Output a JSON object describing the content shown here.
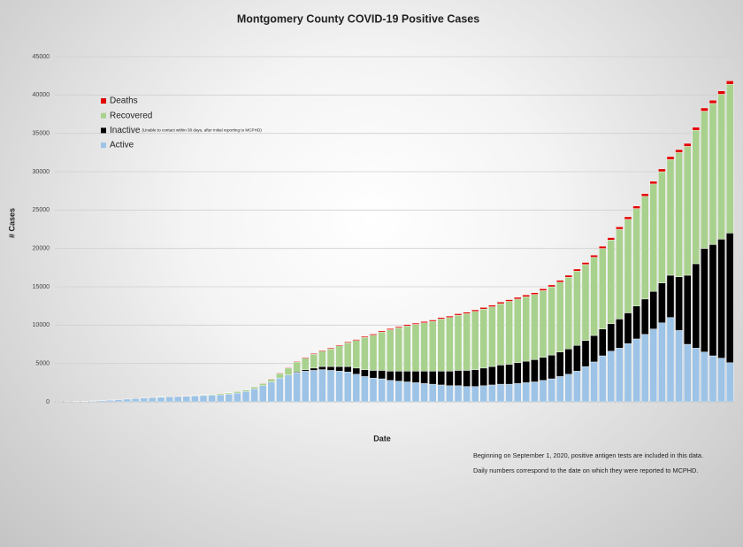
{
  "chart_data": {
    "type": "bar",
    "stacked": true,
    "title": "Montgomery County COVID-19 Positive Cases",
    "x_label": "Date",
    "y_label": "# Cases",
    "legend_note": "(Unable to contact within 30 days, after initial reporting to MCPHD)",
    "annotations": [
      "Beginning on September 1, 2020, positive antigen tests are included in this data.",
      "Daily numbers correspond to the date on which they were reported to MCPHD."
    ],
    "ylim": [
      0,
      45000
    ],
    "yticks": [
      0,
      5000,
      10000,
      15000,
      20000,
      25000,
      30000,
      35000,
      40000,
      45000
    ],
    "grid": true,
    "categories": [
      null,
      null,
      null,
      null,
      null,
      null,
      null,
      null,
      null,
      null,
      null,
      null,
      null,
      null,
      null,
      null,
      null,
      null,
      null,
      null,
      null,
      null,
      null,
      null,
      null,
      null,
      null,
      null,
      null,
      null,
      null,
      null,
      null,
      null,
      null,
      null,
      null,
      null,
      null,
      null,
      null,
      null,
      null,
      null,
      null,
      null,
      null,
      null,
      null,
      null,
      null,
      null,
      null,
      null,
      null,
      null,
      null,
      null,
      null,
      null,
      null,
      null,
      null,
      null,
      null,
      null,
      null,
      null,
      null,
      null,
      null,
      null,
      null,
      null,
      null,
      null,
      null,
      null,
      null,
      null
    ],
    "series": [
      {
        "name": "Active",
        "color": "#9dc3e6",
        "values": [
          10,
          20,
          40,
          70,
          110,
          160,
          220,
          290,
          360,
          430,
          500,
          560,
          620,
          660,
          700,
          740,
          780,
          820,
          870,
          920,
          1000,
          1150,
          1350,
          1700,
          2100,
          2600,
          3100,
          3500,
          3800,
          4000,
          4100,
          4200,
          4100,
          4000,
          3900,
          3600,
          3300,
          3100,
          3000,
          2800,
          2700,
          2600,
          2500,
          2400,
          2300,
          2200,
          2100,
          2100,
          2000,
          2000,
          2100,
          2200,
          2300,
          2300,
          2400,
          2500,
          2600,
          2800,
          3000,
          3300,
          3600,
          4000,
          4600,
          5200,
          6000,
          6600,
          7000,
          7600,
          8200,
          8800,
          9500,
          10300,
          11000,
          9300,
          7500,
          7000,
          6500,
          6000,
          5700,
          5100
        ]
      },
      {
        "name": "Inactive",
        "color": "#000000",
        "values": [
          0,
          0,
          0,
          0,
          0,
          0,
          0,
          0,
          0,
          0,
          0,
          0,
          0,
          0,
          0,
          0,
          0,
          0,
          0,
          0,
          0,
          0,
          0,
          0,
          0,
          0,
          0,
          0,
          100,
          200,
          300,
          400,
          500,
          600,
          700,
          800,
          900,
          1000,
          1100,
          1200,
          1300,
          1400,
          1500,
          1600,
          1700,
          1800,
          1900,
          2000,
          2100,
          2200,
          2300,
          2400,
          2500,
          2600,
          2700,
          2800,
          2900,
          3000,
          3100,
          3200,
          3300,
          3350,
          3400,
          3450,
          3500,
          3600,
          3800,
          4000,
          4300,
          4600,
          4900,
          5200,
          5500,
          7000,
          9000,
          11000,
          13500,
          14500,
          15500,
          16900
        ]
      },
      {
        "name": "Recovered",
        "color": "#a9d18e",
        "values": [
          0,
          0,
          0,
          0,
          0,
          0,
          0,
          0,
          0,
          0,
          0,
          10,
          20,
          30,
          40,
          60,
          80,
          100,
          120,
          150,
          160,
          200,
          210,
          250,
          280,
          340,
          600,
          900,
          1300,
          1500,
          1800,
          2000,
          2300,
          2700,
          3100,
          3600,
          4200,
          4600,
          5000,
          5400,
          5650,
          5900,
          6100,
          6300,
          6500,
          6800,
          7000,
          7200,
          7400,
          7600,
          7700,
          7800,
          8000,
          8200,
          8300,
          8400,
          8500,
          8700,
          8900,
          9100,
          9350,
          9700,
          9900,
          10200,
          10500,
          10900,
          11700,
          12200,
          12700,
          13400,
          14000,
          14500,
          15100,
          16200,
          16800,
          17400,
          17900,
          18400,
          18900,
          19400
        ]
      },
      {
        "name": "Deaths",
        "color": "#e00000",
        "values": [
          0,
          0,
          0,
          1,
          2,
          3,
          5,
          7,
          9,
          12,
          15,
          18,
          20,
          23,
          25,
          28,
          30,
          33,
          35,
          38,
          40,
          44,
          48,
          52,
          58,
          65,
          72,
          80,
          88,
          95,
          100,
          105,
          110,
          115,
          120,
          125,
          130,
          135,
          140,
          145,
          150,
          155,
          160,
          165,
          170,
          175,
          180,
          185,
          190,
          195,
          200,
          205,
          210,
          215,
          220,
          225,
          230,
          235,
          240,
          245,
          250,
          260,
          270,
          280,
          290,
          300,
          310,
          320,
          330,
          340,
          350,
          360,
          370,
          380,
          390,
          400,
          410,
          420,
          430,
          440
        ]
      }
    ]
  }
}
